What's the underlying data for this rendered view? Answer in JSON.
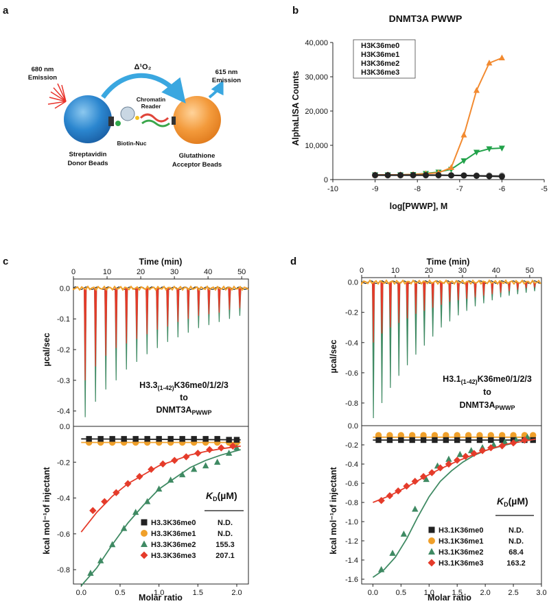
{
  "colors": {
    "me0": "#222222",
    "me1": "#f0a02a",
    "me2": "#3f8a63",
    "me3": "#e53b2a",
    "orange": "#f28a30",
    "green_b": "#22a24a"
  },
  "panels": {
    "a": "a",
    "b": "b",
    "c": "c",
    "d": "d"
  },
  "schematic": {
    "emission_680": [
      "680 nm",
      "Emission"
    ],
    "emission_615": [
      "615 nm",
      "Emission"
    ],
    "singlet_oxygen": "Δ¹O₂",
    "chromatin_reader": [
      "Chromatin",
      "Reader"
    ],
    "biotin_nuc": "Biotin-Nuc",
    "donor": [
      "Streptavidin",
      "Donor Beads"
    ],
    "acceptor": [
      "Glutathione",
      "Acceptor Beads"
    ]
  },
  "chart_data": [
    {
      "panel": "b",
      "type": "line",
      "title": "DNMT3A PWWP",
      "xlabel": "log[PWWP], M",
      "ylabel": "AlphaLISA Counts",
      "xlim": [
        -10,
        -5
      ],
      "ylim": [
        0,
        40000
      ],
      "xticks": [
        "-10",
        "-9",
        "-8",
        "-7",
        "-6",
        "-5"
      ],
      "yticks": [
        "0",
        "10,000",
        "20,000",
        "30,000",
        "40,000"
      ],
      "legend": [
        "H3K36me0",
        "H3K36me1",
        "H3K36me2",
        "H3K36me3"
      ],
      "x": [
        -9,
        -8.7,
        -8.4,
        -8.1,
        -7.8,
        -7.5,
        -7.2,
        -6.9,
        -6.6,
        -6.3,
        -6
      ],
      "series": [
        {
          "name": "H3K36me0",
          "values": [
            1300,
            1300,
            1300,
            1300,
            1300,
            1300,
            1250,
            1200,
            1100,
            1000,
            900
          ]
        },
        {
          "name": "H3K36me1",
          "values": [
            1200,
            1200,
            1200,
            1200,
            1200,
            1200,
            1200,
            1200,
            1200,
            1200,
            1200
          ]
        },
        {
          "name": "H3K36me2",
          "values": [
            1400,
            1400,
            1400,
            1500,
            1700,
            2000,
            3500,
            13000,
            26000,
            34000,
            35500
          ]
        },
        {
          "name": "H3K36me3",
          "values": [
            1400,
            1400,
            1400,
            1500,
            1800,
            2200,
            3000,
            5500,
            8000,
            9000,
            9200
          ]
        }
      ]
    },
    {
      "panel": "c",
      "type": "line",
      "time_label": "Time (min)",
      "time_ticks": [
        "0",
        "10",
        "20",
        "30",
        "40",
        "50"
      ],
      "top_ylabel": "µcal/sec",
      "top_yticks": [
        "0.0",
        "-0.1",
        "-0.2",
        "-0.3",
        "-0.4"
      ],
      "top_ylim": [
        -0.45,
        0.03
      ],
      "annotation": [
        "H3.3",
        "(1-42)",
        "K36me0/1/2/3",
        "to",
        "DNMT3A",
        "PWWP"
      ],
      "spikes": [
        {
          "name": "H3.3K36me3",
          "values": [
            -0.3,
            -0.255,
            -0.22,
            -0.195,
            -0.18,
            -0.165,
            -0.15,
            -0.135,
            -0.125,
            -0.11,
            -0.1,
            -0.09,
            -0.085,
            -0.08,
            -0.07,
            -0.065
          ]
        },
        {
          "name": "H3.3K36me2",
          "values": [
            -0.42,
            -0.37,
            -0.33,
            -0.3,
            -0.265,
            -0.24,
            -0.215,
            -0.195,
            -0.175,
            -0.16,
            -0.145,
            -0.13,
            -0.12,
            -0.11,
            -0.1,
            -0.09
          ]
        }
      ],
      "bottom_ylabel": "kcal mol⁻¹of injectant",
      "bottom_xlabel": "Molar ratio",
      "bottom_xlim": [
        -0.1,
        2.15
      ],
      "bottom_ylim": [
        -0.88,
        0.0
      ],
      "bottom_xticks": [
        "0.0",
        "0.5",
        "1.0",
        "1.5",
        "2.0"
      ],
      "bottom_yticks": [
        "0.0",
        "-0.2",
        "-0.4",
        "-0.6",
        "-0.8"
      ],
      "kd_header": "K",
      "kd_sub": "D",
      "kd_unit": "(µM)",
      "legend": [
        {
          "name": "H3.3K36me0",
          "kd": "N.D."
        },
        {
          "name": "H3.3K36me1",
          "kd": "N.D."
        },
        {
          "name": "H3.3K36me2",
          "kd": "155.3"
        },
        {
          "name": "H3.3K36me3",
          "kd": "207.1"
        }
      ],
      "series": [
        {
          "name": "H3.3K36me0",
          "x": [
            0.1,
            0.25,
            0.4,
            0.55,
            0.7,
            0.85,
            1.0,
            1.15,
            1.3,
            1.45,
            1.6,
            1.75,
            1.9,
            2.0
          ],
          "values": [
            -0.07,
            -0.07,
            -0.07,
            -0.07,
            -0.07,
            -0.07,
            -0.07,
            -0.07,
            -0.07,
            -0.07,
            -0.07,
            -0.07,
            -0.075,
            -0.075
          ],
          "fit": [
            [
              0,
              -0.07
            ],
            [
              2.05,
              -0.075
            ]
          ]
        },
        {
          "name": "H3.3K36me1",
          "x": [
            0.1,
            0.25,
            0.4,
            0.55,
            0.7,
            0.85,
            1.0,
            1.15,
            1.3,
            1.45,
            1.6,
            1.75,
            1.9,
            2.0
          ],
          "values": [
            -0.09,
            -0.09,
            -0.09,
            -0.09,
            -0.09,
            -0.09,
            -0.09,
            -0.09,
            -0.09,
            -0.09,
            -0.09,
            -0.09,
            -0.09,
            -0.09
          ],
          "fit": [
            [
              0,
              -0.09
            ],
            [
              2.05,
              -0.09
            ]
          ]
        },
        {
          "name": "H3.3K36me2",
          "x": [
            0.12,
            0.25,
            0.4,
            0.55,
            0.7,
            0.85,
            1.0,
            1.15,
            1.3,
            1.45,
            1.6,
            1.75,
            1.9,
            2.0
          ],
          "values": [
            -0.82,
            -0.75,
            -0.66,
            -0.57,
            -0.48,
            -0.42,
            -0.35,
            -0.3,
            -0.27,
            -0.24,
            -0.22,
            -0.2,
            -0.15,
            -0.12
          ],
          "fit": [
            [
              0.0,
              -0.89
            ],
            [
              0.2,
              -0.79
            ],
            [
              0.4,
              -0.66
            ],
            [
              0.6,
              -0.54
            ],
            [
              0.8,
              -0.44
            ],
            [
              1.0,
              -0.35
            ],
            [
              1.2,
              -0.29
            ],
            [
              1.4,
              -0.23
            ],
            [
              1.6,
              -0.19
            ],
            [
              1.8,
              -0.16
            ],
            [
              2.05,
              -0.13
            ]
          ]
        },
        {
          "name": "H3.3K36me3",
          "x": [
            0.15,
            0.3,
            0.45,
            0.6,
            0.75,
            0.9,
            1.05,
            1.2,
            1.35,
            1.5,
            1.65,
            1.8,
            1.95
          ],
          "values": [
            -0.47,
            -0.42,
            -0.37,
            -0.32,
            -0.28,
            -0.24,
            -0.21,
            -0.19,
            -0.17,
            -0.15,
            -0.13,
            -0.12,
            -0.11
          ],
          "fit": [
            [
              0.0,
              -0.59
            ],
            [
              0.2,
              -0.48
            ],
            [
              0.4,
              -0.39
            ],
            [
              0.6,
              -0.32
            ],
            [
              0.8,
              -0.27
            ],
            [
              1.0,
              -0.22
            ],
            [
              1.2,
              -0.19
            ],
            [
              1.4,
              -0.16
            ],
            [
              1.6,
              -0.14
            ],
            [
              1.8,
              -0.125
            ],
            [
              2.05,
              -0.11
            ]
          ]
        }
      ]
    },
    {
      "panel": "d",
      "type": "line",
      "time_label": "Time (min)",
      "time_ticks": [
        "0",
        "10",
        "20",
        "30",
        "40",
        "50"
      ],
      "top_ylabel": "µcal/sec",
      "top_yticks": [
        "0.0",
        "-0.2",
        "-0.4",
        "-0.6",
        "-0.8"
      ],
      "top_ylim": [
        -0.95,
        0.03
      ],
      "annotation": [
        "H3.1",
        "(1-42)",
        "K36me0/1/2/3",
        "to",
        "DNMT3A",
        "PWWP"
      ],
      "spikes": [
        {
          "name": "H3.1K36me3",
          "values": [
            -0.4,
            -0.34,
            -0.3,
            -0.27,
            -0.24,
            -0.21,
            -0.19,
            -0.17,
            -0.15,
            -0.13,
            -0.12,
            -0.11,
            -0.1,
            -0.09,
            -0.08,
            -0.07,
            -0.06,
            -0.05,
            -0.04,
            -0.035
          ]
        },
        {
          "name": "H3.1K36me2",
          "values": [
            -0.9,
            -0.8,
            -0.7,
            -0.62,
            -0.55,
            -0.48,
            -0.42,
            -0.36,
            -0.3,
            -0.26,
            -0.22,
            -0.19,
            -0.16,
            -0.14,
            -0.12,
            -0.1,
            -0.09,
            -0.08,
            -0.07,
            -0.06
          ]
        }
      ],
      "bottom_ylabel": "kcal mol⁻¹of injectant",
      "bottom_xlabel": "Molar ratio",
      "bottom_xlim": [
        -0.2,
        3.0
      ],
      "bottom_ylim": [
        -1.65,
        0.0
      ],
      "bottom_xticks": [
        "0.0",
        "0.5",
        "1.0",
        "1.5",
        "2.0",
        "2.5",
        "3.0"
      ],
      "bottom_yticks": [
        "0.0",
        "-0.2",
        "-0.4",
        "-0.6",
        "-0.8",
        "-1.0",
        "-1.2",
        "-1.4",
        "-1.6"
      ],
      "kd_header": "K",
      "kd_sub": "D",
      "kd_unit": "(µM)",
      "legend": [
        {
          "name": "H3.1K36me0",
          "kd": "N.D."
        },
        {
          "name": "H3.1K36me1",
          "kd": "N.D."
        },
        {
          "name": "H3.1K36me2",
          "kd": "68.4"
        },
        {
          "name": "H3.1K36me3",
          "kd": "163.2"
        }
      ],
      "series": [
        {
          "name": "H3.1K36me0",
          "x": [
            0.1,
            0.3,
            0.5,
            0.7,
            0.9,
            1.1,
            1.3,
            1.5,
            1.7,
            1.9,
            2.1,
            2.3,
            2.5,
            2.7,
            2.85
          ],
          "values": [
            -0.15,
            -0.15,
            -0.15,
            -0.15,
            -0.15,
            -0.15,
            -0.15,
            -0.15,
            -0.15,
            -0.15,
            -0.15,
            -0.15,
            -0.15,
            -0.15,
            -0.15
          ],
          "fit": [
            [
              0,
              -0.15
            ],
            [
              2.9,
              -0.15
            ]
          ]
        },
        {
          "name": "H3.1K36me1",
          "x": [
            0.1,
            0.3,
            0.5,
            0.7,
            0.9,
            1.1,
            1.3,
            1.5,
            1.7,
            1.9,
            2.1,
            2.3,
            2.5,
            2.7,
            2.85
          ],
          "values": [
            -0.1,
            -0.1,
            -0.1,
            -0.1,
            -0.1,
            -0.1,
            -0.1,
            -0.1,
            -0.1,
            -0.1,
            -0.1,
            -0.1,
            -0.1,
            -0.1,
            -0.1
          ],
          "fit": [
            [
              0,
              -0.12
            ],
            [
              2.9,
              -0.12
            ]
          ]
        },
        {
          "name": "H3.1K36me2",
          "x": [
            0.15,
            0.35,
            0.55,
            0.75,
            0.95,
            1.15,
            1.35,
            1.55,
            1.75,
            1.95,
            2.15,
            2.35,
            2.55,
            2.75
          ],
          "values": [
            -1.5,
            -1.33,
            -1.13,
            -0.87,
            -0.56,
            -0.42,
            -0.35,
            -0.3,
            -0.26,
            -0.23,
            -0.2,
            -0.17,
            -0.15,
            -0.12
          ],
          "fit": [
            [
              0.0,
              -1.58
            ],
            [
              0.2,
              -1.5
            ],
            [
              0.4,
              -1.37
            ],
            [
              0.6,
              -1.18
            ],
            [
              0.8,
              -0.95
            ],
            [
              1.0,
              -0.74
            ],
            [
              1.2,
              -0.58
            ],
            [
              1.4,
              -0.47
            ],
            [
              1.6,
              -0.38
            ],
            [
              1.8,
              -0.31
            ],
            [
              2.0,
              -0.26
            ],
            [
              2.3,
              -0.21
            ],
            [
              2.6,
              -0.17
            ],
            [
              2.9,
              -0.14
            ]
          ]
        },
        {
          "name": "H3.1K36me3",
          "x": [
            0.15,
            0.3,
            0.45,
            0.6,
            0.75,
            0.9,
            1.05,
            1.2,
            1.35,
            1.5,
            1.65,
            1.8,
            1.95,
            2.1,
            2.3,
            2.5,
            2.7
          ],
          "values": [
            -0.78,
            -0.73,
            -0.68,
            -0.63,
            -0.58,
            -0.53,
            -0.49,
            -0.44,
            -0.4,
            -0.36,
            -0.32,
            -0.29,
            -0.26,
            -0.23,
            -0.21,
            -0.18,
            -0.15
          ],
          "fit": [
            [
              0.0,
              -0.8
            ],
            [
              0.3,
              -0.73
            ],
            [
              0.6,
              -0.64
            ],
            [
              0.9,
              -0.54
            ],
            [
              1.2,
              -0.45
            ],
            [
              1.5,
              -0.37
            ],
            [
              1.8,
              -0.3
            ],
            [
              2.1,
              -0.24
            ],
            [
              2.4,
              -0.19
            ],
            [
              2.9,
              -0.14
            ]
          ]
        }
      ]
    }
  ]
}
